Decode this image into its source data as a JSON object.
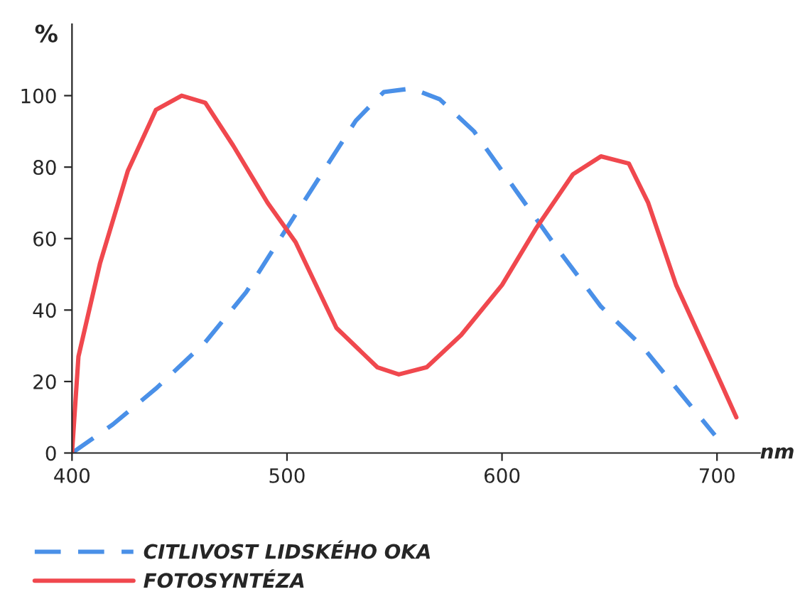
{
  "chart_data": {
    "type": "line",
    "xlabel": "nm",
    "ylabel": "%",
    "xlim": [
      400,
      720
    ],
    "ylim": [
      0,
      120
    ],
    "xticks": [
      400,
      500,
      600,
      700
    ],
    "yticks": [
      0,
      20,
      40,
      60,
      80,
      100
    ],
    "grid": false,
    "legend": "bottom",
    "marker": "none",
    "series": [
      {
        "name": "CITLIVOST LIDSKÉHO OKA",
        "color": "#4a90e8",
        "line_style": "dashed",
        "x": [
          400,
          419,
          439,
          462,
          481,
          500,
          516,
          532,
          545,
          558,
          571,
          587,
          607,
          626,
          646,
          665,
          684,
          699
        ],
        "values": [
          0,
          8,
          18,
          31,
          45,
          63,
          78,
          93,
          101,
          102,
          99,
          90,
          73,
          57,
          41,
          30,
          16,
          5
        ]
      },
      {
        "name": "FOTOSYNTÉZA",
        "color": "#f0484e",
        "line_style": "solid",
        "x": [
          400,
          403,
          413,
          426,
          439,
          451,
          462,
          475,
          491,
          504,
          523,
          542,
          552,
          565,
          581,
          600,
          616,
          633,
          646,
          659,
          668,
          681,
          697,
          709
        ],
        "values": [
          0,
          27,
          53,
          79,
          96,
          100,
          98,
          86,
          70,
          59,
          35,
          24,
          22,
          24,
          33,
          47,
          63,
          78,
          83,
          81,
          70,
          47,
          26,
          10
        ]
      }
    ]
  }
}
